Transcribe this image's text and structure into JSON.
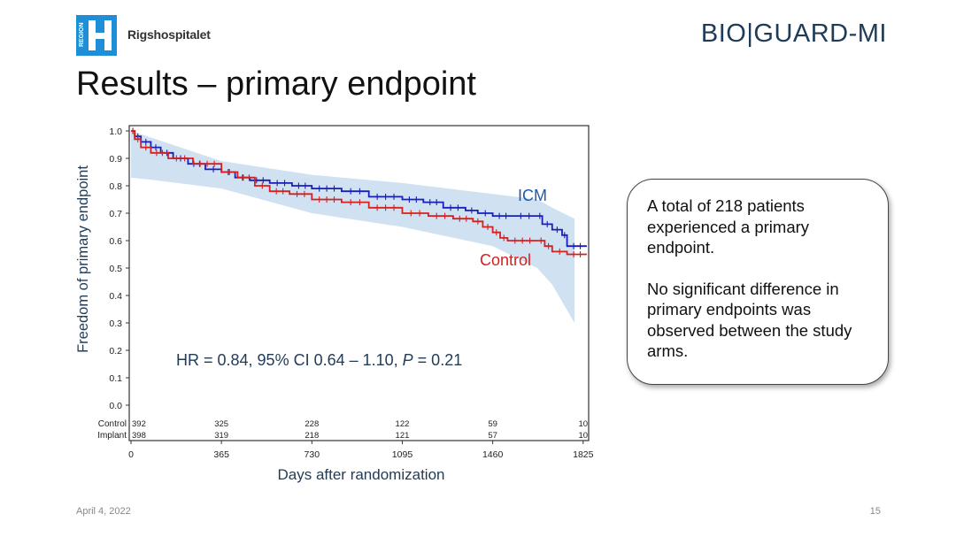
{
  "header": {
    "org_name": "Rigshospitalet",
    "org_logo_text": "REGION",
    "study_logo_bold": "BIO",
    "study_logo_sep": "|",
    "study_logo_light": "GUARD-MI"
  },
  "slide": {
    "title": "Results – primary endpoint",
    "date": "April 4, 2022",
    "page": "15"
  },
  "callout": {
    "para1": "A total of 218 patients experienced a primary endpoint.",
    "para2": "No significant difference in primary endpoints was observed between the study arms."
  },
  "colors": {
    "icm": "#1a1fb8",
    "control": "#d42020",
    "ci_band": "#c8dcee",
    "annotation": "#1f3b57",
    "logo_blue": "#1e8fd6"
  },
  "chart_data": {
    "type": "line",
    "subtype": "kaplan-meier",
    "xlabel": "Days after randomization",
    "ylabel": "Freedom of primary endpoint",
    "xlim": [
      0,
      1840
    ],
    "ylim": [
      0,
      1.0
    ],
    "x_ticks": [
      0,
      365,
      730,
      1095,
      1460,
      1825
    ],
    "y_ticks": [
      "0.0",
      "0.1",
      "0.2",
      "0.3",
      "0.4",
      "0.5",
      "0.6",
      "0.7",
      "0.8",
      "0.9",
      "1.0"
    ],
    "grid": false,
    "annotation": {
      "pre": "HR = 0.84, 95% CI 0.64 – 1.10, ",
      "p_label": "P",
      "post": " = 0.21"
    },
    "series": [
      {
        "name": "ICM",
        "points": [
          [
            0,
            1.0
          ],
          [
            15,
            0.98
          ],
          [
            40,
            0.96
          ],
          [
            80,
            0.94
          ],
          [
            120,
            0.92
          ],
          [
            170,
            0.9
          ],
          [
            230,
            0.88
          ],
          [
            300,
            0.86
          ],
          [
            365,
            0.85
          ],
          [
            420,
            0.83
          ],
          [
            480,
            0.82
          ],
          [
            560,
            0.81
          ],
          [
            650,
            0.8
          ],
          [
            730,
            0.79
          ],
          [
            850,
            0.78
          ],
          [
            960,
            0.76
          ],
          [
            1095,
            0.75
          ],
          [
            1180,
            0.74
          ],
          [
            1260,
            0.72
          ],
          [
            1350,
            0.71
          ],
          [
            1400,
            0.7
          ],
          [
            1460,
            0.69
          ],
          [
            1540,
            0.69
          ],
          [
            1640,
            0.69
          ],
          [
            1660,
            0.66
          ],
          [
            1700,
            0.64
          ],
          [
            1740,
            0.62
          ],
          [
            1760,
            0.58
          ],
          [
            1840,
            0.58
          ]
        ]
      },
      {
        "name": "Control",
        "points": [
          [
            0,
            1.0
          ],
          [
            15,
            0.97
          ],
          [
            40,
            0.94
          ],
          [
            80,
            0.92
          ],
          [
            150,
            0.9
          ],
          [
            250,
            0.88
          ],
          [
            365,
            0.85
          ],
          [
            430,
            0.83
          ],
          [
            500,
            0.8
          ],
          [
            560,
            0.78
          ],
          [
            640,
            0.77
          ],
          [
            730,
            0.75
          ],
          [
            850,
            0.74
          ],
          [
            960,
            0.72
          ],
          [
            1095,
            0.7
          ],
          [
            1200,
            0.69
          ],
          [
            1300,
            0.68
          ],
          [
            1380,
            0.67
          ],
          [
            1420,
            0.65
          ],
          [
            1460,
            0.63
          ],
          [
            1490,
            0.61
          ],
          [
            1520,
            0.6
          ],
          [
            1640,
            0.6
          ],
          [
            1670,
            0.58
          ],
          [
            1700,
            0.56
          ],
          [
            1760,
            0.55
          ],
          [
            1840,
            0.55
          ]
        ]
      }
    ],
    "ci_band": {
      "upper": [
        [
          0,
          1.0
        ],
        [
          100,
          0.97
        ],
        [
          365,
          0.89
        ],
        [
          730,
          0.84
        ],
        [
          1095,
          0.81
        ],
        [
          1460,
          0.77
        ],
        [
          1640,
          0.75
        ],
        [
          1700,
          0.72
        ],
        [
          1790,
          0.68
        ]
      ],
      "lower": [
        [
          0,
          0.83
        ],
        [
          100,
          0.82
        ],
        [
          365,
          0.79
        ],
        [
          730,
          0.7
        ],
        [
          1095,
          0.65
        ],
        [
          1460,
          0.58
        ],
        [
          1640,
          0.5
        ],
        [
          1700,
          0.44
        ],
        [
          1790,
          0.3
        ]
      ]
    },
    "at_risk": {
      "rows": [
        {
          "label": "Control",
          "values": [
            "392",
            "325",
            "228",
            "122",
            "59",
            "10"
          ]
        },
        {
          "label": "Implant",
          "values": [
            "398",
            "319",
            "218",
            "121",
            "57",
            "10"
          ]
        }
      ]
    }
  }
}
